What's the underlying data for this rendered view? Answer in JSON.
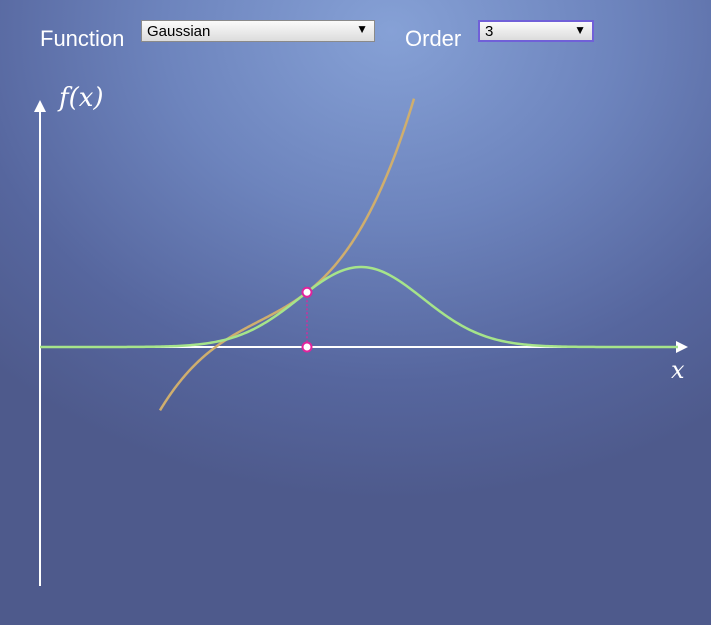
{
  "controls": {
    "function_label": "Function",
    "function_value": "Gaussian",
    "order_label": "Order",
    "order_value": "3"
  },
  "graph": {
    "y_axis_label": "f(x)",
    "x_axis_label": "x",
    "colors": {
      "function_curve": "#a6e48a",
      "approximation_curve": "#cfae6e",
      "axis": "#ffffff",
      "handle": "#e0249c"
    }
  },
  "icons": {
    "dropdown_arrow": "▼"
  }
}
